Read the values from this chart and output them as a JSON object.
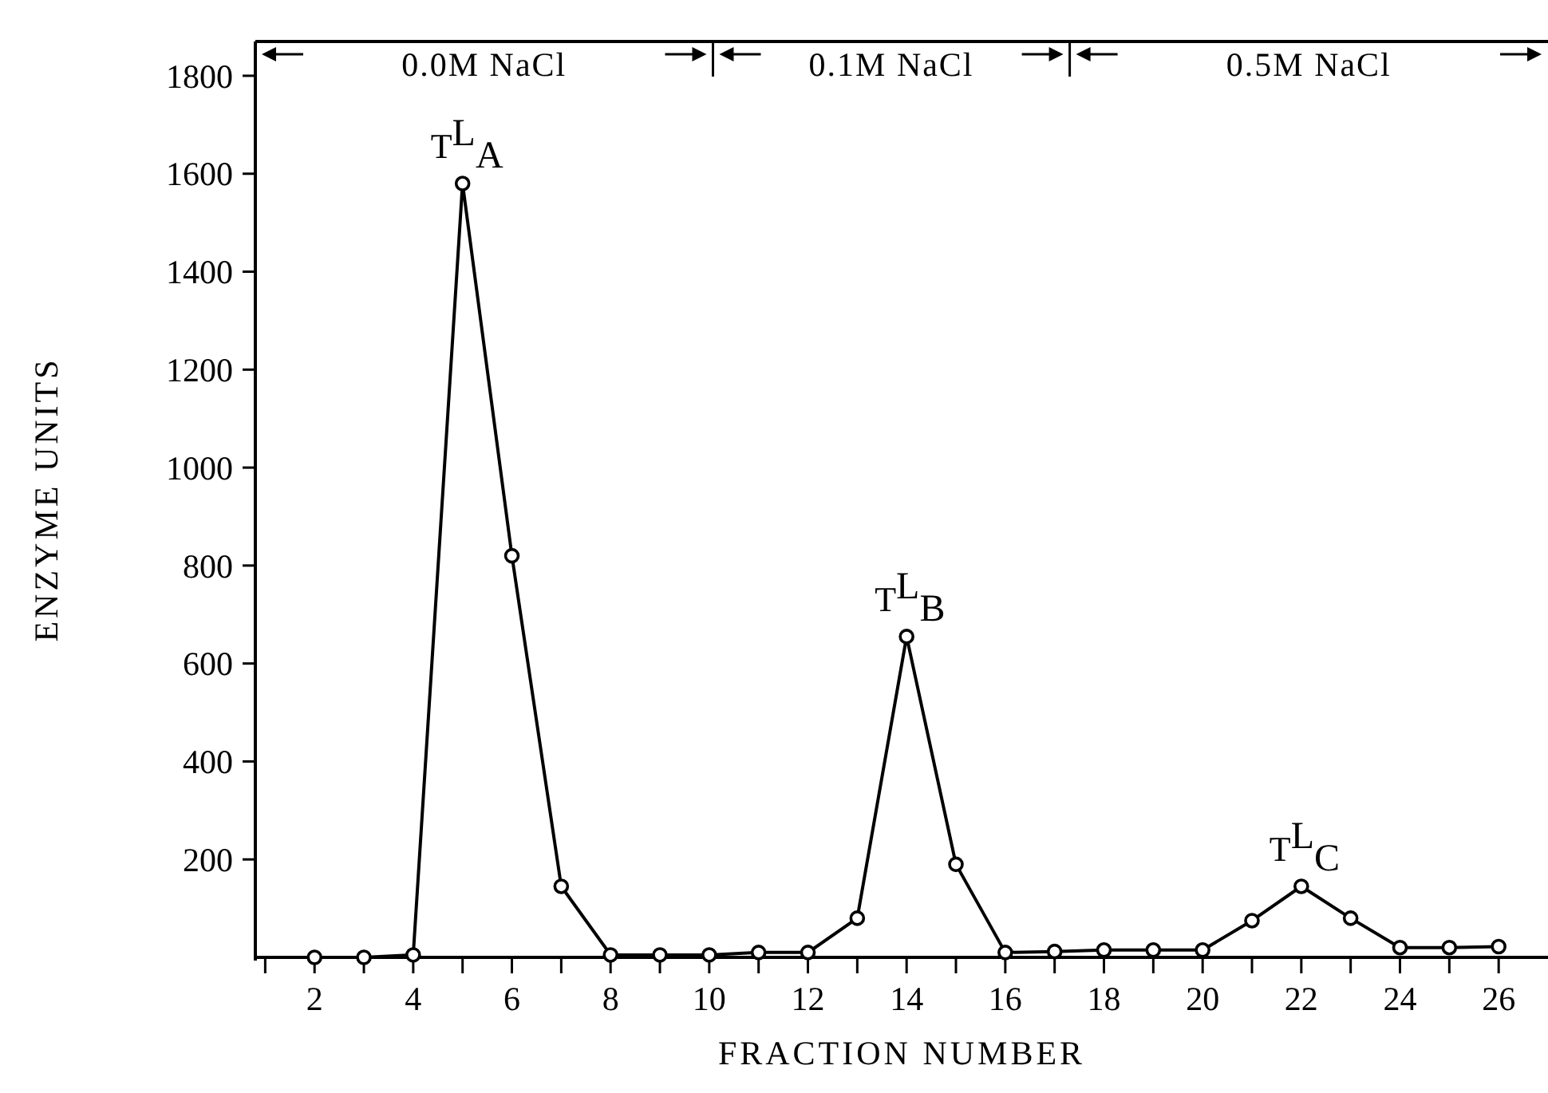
{
  "chart_data": {
    "type": "line",
    "xlabel": "FRACTION NUMBER",
    "ylabel": "ENZYME UNITS",
    "x": [
      2,
      3,
      4,
      5,
      6,
      7,
      8,
      9,
      10,
      11,
      12,
      13,
      14,
      15,
      16,
      17,
      18,
      19,
      20,
      21,
      22,
      23,
      24,
      25,
      26
    ],
    "series": [
      {
        "color": "#000000",
        "values": [
          0,
          0,
          5,
          1580,
          820,
          145,
          5,
          5,
          5,
          10,
          10,
          80,
          655,
          190,
          10,
          12,
          15,
          15,
          15,
          75,
          145,
          80,
          20,
          20,
          22
        ]
      }
    ],
    "xlim": [
      0.8,
      27
    ],
    "ylim": [
      0,
      1870
    ],
    "xticks": [
      {
        "value": 1,
        "label": null
      },
      2,
      {
        "value": 3,
        "label": null
      },
      4,
      {
        "value": 5,
        "label": null
      },
      6,
      {
        "value": 7,
        "label": null
      },
      8,
      {
        "value": 9,
        "label": null
      },
      10,
      {
        "value": 11,
        "label": null
      },
      12,
      {
        "value": 13,
        "label": null
      },
      14,
      {
        "value": 15,
        "label": null
      },
      16,
      {
        "value": 17,
        "label": null
      },
      18,
      {
        "value": 19,
        "label": null
      },
      20,
      {
        "value": 21,
        "label": null
      },
      22,
      {
        "value": 23,
        "label": null
      },
      24,
      {
        "value": 25,
        "label": null
      },
      26
    ],
    "yticks": [
      200,
      400,
      600,
      800,
      1000,
      1200,
      1400,
      1600,
      1800
    ],
    "annotations": [
      "0.0M NaCl",
      "0.1M NaCl",
      "0.5M NaCl",
      {
        "text": "T$^{L}$$_{A}$",
        "x": 5,
        "y": 1580
      },
      {
        "text": "T$^{L}$$_{B}$",
        "x": 14,
        "y": 655
      },
      {
        "text": "T$^{L}$$_{C}$",
        "x": 22,
        "y": 145
      }
    ],
    "marker": "circle",
    "line_style": "solid",
    "grid": false
  }
}
